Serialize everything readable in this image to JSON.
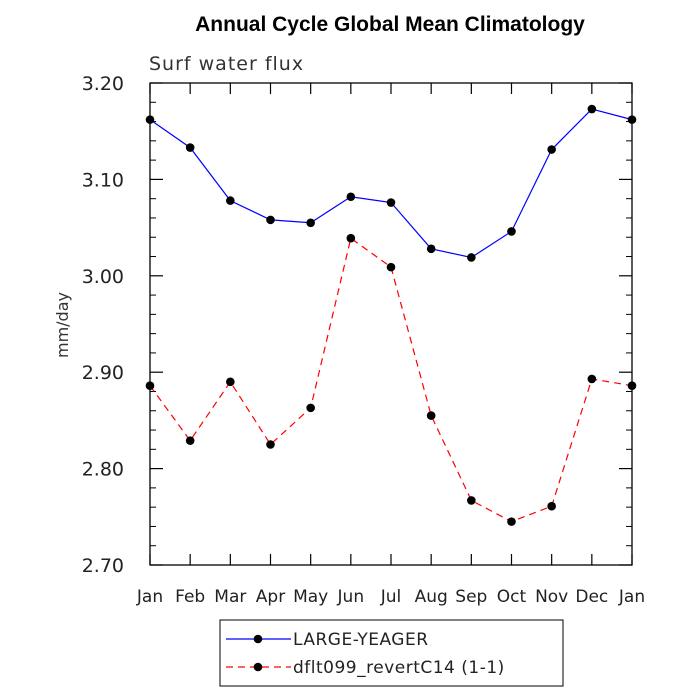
{
  "chart_data": {
    "type": "line",
    "title": "Annual Cycle Global Mean Climatology",
    "subtitle": "Surf water flux",
    "xlabel": "",
    "ylabel": "mm/day",
    "categories": [
      "Jan",
      "Feb",
      "Mar",
      "Apr",
      "May",
      "Jun",
      "Jul",
      "Aug",
      "Sep",
      "Oct",
      "Nov",
      "Dec",
      "Jan"
    ],
    "ylim": [
      2.7,
      3.2
    ],
    "yticks": [
      2.7,
      2.8,
      2.9,
      3.0,
      3.1,
      3.2
    ],
    "ytick_labels": [
      "2.70",
      "2.80",
      "2.90",
      "3.00",
      "3.10",
      "3.20"
    ],
    "grid": false,
    "legend_position": "bottom-center",
    "series": [
      {
        "name": "LARGE-YEAGER",
        "color": "#0000ff",
        "dash": "solid",
        "values": [
          3.162,
          3.133,
          3.078,
          3.058,
          3.055,
          3.082,
          3.076,
          3.028,
          3.019,
          3.046,
          3.131,
          3.173,
          3.162
        ]
      },
      {
        "name": "dflt099_revertC14 (1-1)",
        "color": "#ff0000",
        "dash": "dashed",
        "values": [
          2.886,
          2.829,
          2.89,
          2.825,
          2.863,
          3.039,
          3.009,
          2.855,
          2.767,
          2.745,
          2.761,
          2.893,
          2.886
        ]
      }
    ]
  }
}
